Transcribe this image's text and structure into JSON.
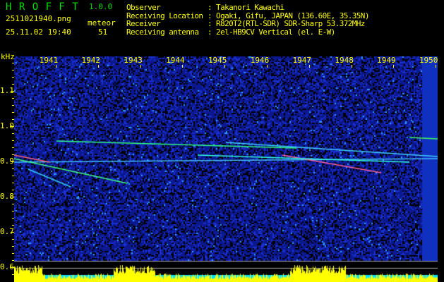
{
  "app": {
    "name": "H R O F F T",
    "version": "1.0.0"
  },
  "file": {
    "name": "2511021940.png",
    "datetime": "25.11.02 19:40"
  },
  "meteor": {
    "label": "meteor",
    "count": "51"
  },
  "info": [
    {
      "label": "Observer",
      "value": ": Takanori Kawachi"
    },
    {
      "label": "Receiving Location",
      "value": ": Ogaki, Gifu, JAPAN (136.60E, 35.35N)"
    },
    {
      "label": "Receiver",
      "value": ": R820T2(RTL-SDR) SDR-Sharp 53.372MHz"
    },
    {
      "label": "Receiving antenna",
      "value": ": 2el-HB9CV Vertical (el. E-W)"
    }
  ],
  "axis": {
    "unit": "kHz",
    "x_ticks": [
      "1941",
      "1942",
      "1943",
      "1944",
      "1945",
      "1946",
      "1947",
      "1948",
      "1949",
      "1950"
    ],
    "y_ticks": [
      "1.1",
      "1.0",
      "0.9",
      "0.8",
      "0.7",
      "0.6"
    ]
  },
  "colors": {
    "text": "#ffff00",
    "logo": "#00e000",
    "background": "#000000",
    "noise": "#0a1a9a",
    "level_bar": "#ffff00",
    "level_base": "#00e0ff"
  }
}
